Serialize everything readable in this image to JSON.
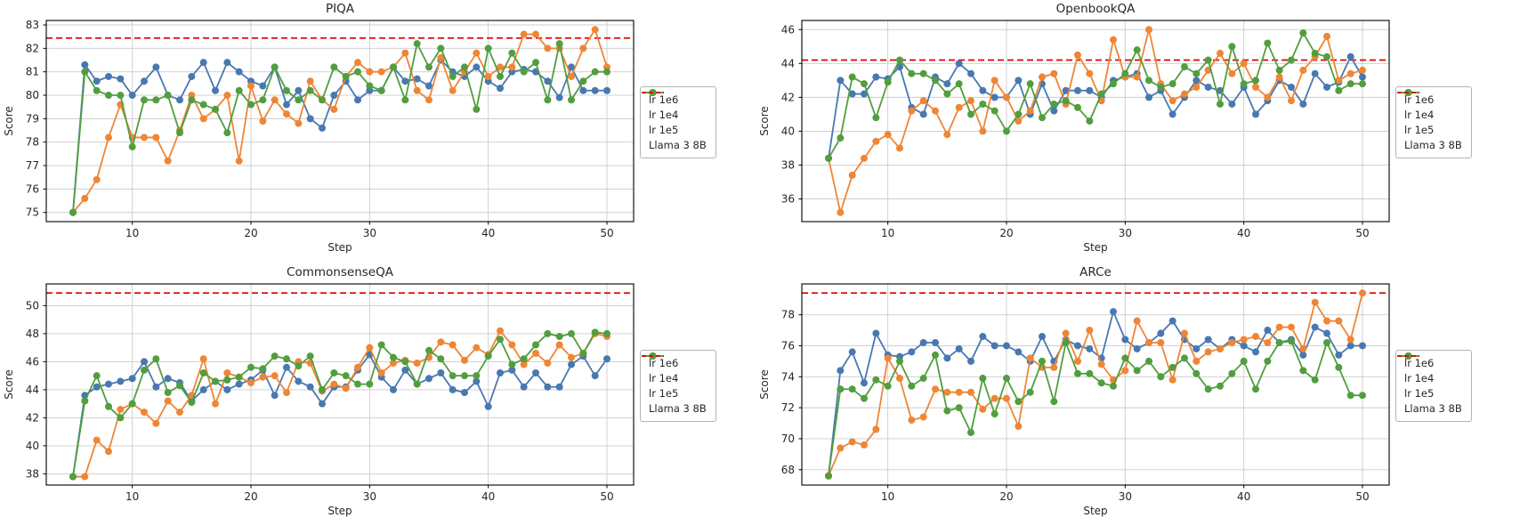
{
  "figure": {
    "background": "#ffffff",
    "x_axis_label": "Step",
    "y_axis_label": "Score",
    "x_tick_labels": [
      10,
      20,
      30,
      40,
      50
    ],
    "legend": {
      "entries": [
        "lr 1e6",
        "lr 1e4",
        "lr 1e5",
        "Llama 3 8B"
      ],
      "position": "right of each subplot"
    }
  },
  "colors": {
    "lr_1e6": "#4878b0",
    "lr_1e4": "#ee8636",
    "lr_1e5": "#519e3e",
    "baseline": "#e50000",
    "grid": "#cccccc",
    "spine": "#000000",
    "text": "#262626"
  },
  "chart_data": [
    {
      "type": "line",
      "title": "PIQA",
      "xlabel": "Step",
      "ylabel": "Score",
      "x_range": [
        5,
        50
      ],
      "x_step": 1,
      "xlim": [
        2.75,
        52.25
      ],
      "ylim": [
        74.61,
        83.19
      ],
      "xticks": [
        10,
        20,
        30,
        40,
        50
      ],
      "yticks": [
        75,
        76,
        77,
        78,
        79,
        80,
        81,
        82,
        83
      ],
      "grid": true,
      "baseline": {
        "label": "Llama 3 8B",
        "value": 82.44
      },
      "series": [
        {
          "name": "lr 1e6",
          "color_key": "lr_1e6",
          "values": [
            75.0,
            81.3,
            80.6,
            80.8,
            80.7,
            80.0,
            80.6,
            81.2,
            80.0,
            79.8,
            80.8,
            81.4,
            80.2,
            81.4,
            81.0,
            80.6,
            80.4,
            81.2,
            79.6,
            80.2,
            79.0,
            78.6,
            80.0,
            80.6,
            79.8,
            80.2,
            80.2,
            81.2,
            80.6,
            80.7,
            80.4,
            81.5,
            81.0,
            80.8,
            81.2,
            80.6,
            80.3,
            81.0,
            81.1,
            81.0,
            80.6,
            79.9,
            81.2,
            80.2,
            80.2,
            80.2
          ]
        },
        {
          "name": "lr 1e4",
          "color_key": "lr_1e4",
          "values": [
            75.0,
            75.6,
            76.4,
            78.2,
            79.6,
            78.2,
            78.2,
            78.2,
            77.2,
            78.5,
            80.0,
            79.0,
            79.4,
            80.0,
            77.2,
            80.4,
            78.9,
            79.8,
            79.2,
            78.8,
            80.6,
            79.8,
            79.4,
            80.8,
            81.4,
            81.0,
            81.0,
            81.2,
            81.8,
            80.2,
            79.8,
            81.6,
            80.2,
            81.0,
            81.8,
            80.8,
            81.2,
            81.2,
            82.6,
            82.6,
            82.0,
            82.0,
            80.8,
            82.0,
            82.8,
            81.2
          ]
        },
        {
          "name": "lr 1e5",
          "color_key": "lr_1e5",
          "values": [
            75.0,
            81.0,
            80.2,
            80.0,
            80.0,
            77.8,
            79.8,
            79.8,
            80.0,
            78.4,
            79.8,
            79.6,
            79.4,
            78.4,
            80.2,
            79.6,
            79.8,
            81.2,
            80.2,
            79.8,
            80.2,
            79.8,
            81.2,
            80.8,
            81.0,
            80.4,
            80.2,
            81.2,
            79.8,
            82.2,
            81.2,
            82.0,
            80.8,
            81.2,
            79.4,
            82.0,
            80.8,
            81.8,
            81.0,
            81.4,
            79.8,
            82.2,
            79.8,
            80.6,
            81.0,
            81.0
          ]
        }
      ]
    },
    {
      "type": "line",
      "title": "OpenbookQA",
      "xlabel": "Step",
      "ylabel": "Score",
      "x_range": [
        5,
        50
      ],
      "x_step": 1,
      "xlim": [
        2.75,
        52.25
      ],
      "ylim": [
        34.66,
        46.54
      ],
      "xticks": [
        10,
        20,
        30,
        40,
        50
      ],
      "yticks": [
        36,
        38,
        40,
        42,
        44,
        46
      ],
      "grid": true,
      "baseline": {
        "label": "Llama 3 8B",
        "value": 44.2
      },
      "series": [
        {
          "name": "lr 1e6",
          "color_key": "lr_1e6",
          "values": [
            38.4,
            43.0,
            42.2,
            42.2,
            43.2,
            43.1,
            43.8,
            41.4,
            41.0,
            43.2,
            42.8,
            44.0,
            43.4,
            42.4,
            42.0,
            42.0,
            43.0,
            41.0,
            42.8,
            41.2,
            42.4,
            42.4,
            42.4,
            42.0,
            43.0,
            43.2,
            43.4,
            42.0,
            42.4,
            41.0,
            42.0,
            43.0,
            42.6,
            42.4,
            41.6,
            42.6,
            41.0,
            41.8,
            43.0,
            42.6,
            41.6,
            43.4,
            42.6,
            42.9,
            44.4,
            43.2
          ]
        },
        {
          "name": "lr 1e4",
          "color_key": "lr_1e4",
          "values": [
            38.4,
            35.2,
            37.4,
            38.4,
            39.4,
            39.8,
            39.0,
            41.2,
            41.8,
            41.2,
            39.8,
            41.4,
            41.8,
            40.0,
            43.0,
            42.0,
            40.6,
            41.2,
            43.2,
            43.4,
            41.6,
            44.5,
            43.4,
            41.8,
            45.4,
            43.2,
            43.2,
            46.0,
            42.8,
            41.8,
            42.2,
            42.6,
            43.6,
            44.6,
            43.4,
            44.0,
            42.6,
            42.0,
            43.2,
            41.8,
            43.6,
            44.4,
            45.6,
            43.0,
            43.4,
            43.6
          ]
        },
        {
          "name": "lr 1e5",
          "color_key": "lr_1e5",
          "values": [
            38.4,
            39.6,
            43.2,
            42.8,
            40.8,
            42.9,
            44.2,
            43.4,
            43.4,
            43.0,
            42.2,
            42.8,
            41.0,
            41.6,
            41.2,
            40.0,
            41.0,
            42.8,
            40.8,
            41.6,
            41.8,
            41.4,
            40.6,
            42.2,
            42.8,
            43.4,
            44.8,
            43.0,
            42.6,
            42.8,
            43.8,
            43.4,
            44.2,
            41.6,
            45.0,
            42.8,
            43.0,
            45.2,
            43.6,
            44.2,
            45.8,
            44.6,
            44.4,
            42.4,
            42.8,
            42.8
          ]
        }
      ]
    },
    {
      "type": "line",
      "title": "CommonsenseQA",
      "xlabel": "Step",
      "ylabel": "Score",
      "x_range": [
        5,
        50
      ],
      "x_step": 1,
      "xlim": [
        2.75,
        52.25
      ],
      "ylim": [
        37.2,
        51.55
      ],
      "xticks": [
        10,
        20,
        30,
        40,
        50
      ],
      "yticks": [
        38,
        40,
        42,
        44,
        46,
        48,
        50
      ],
      "grid": true,
      "baseline": {
        "label": "Llama 3 8B",
        "value": 50.9
      },
      "series": [
        {
          "name": "lr 1e6",
          "color_key": "lr_1e6",
          "values": [
            37.8,
            43.6,
            44.2,
            44.4,
            44.6,
            44.8,
            46.0,
            44.2,
            44.8,
            44.5,
            43.2,
            44.0,
            44.6,
            44.0,
            44.4,
            44.7,
            45.4,
            43.6,
            45.6,
            44.6,
            44.2,
            43.0,
            44.2,
            44.2,
            45.4,
            46.5,
            44.9,
            44.0,
            45.4,
            44.4,
            44.8,
            45.2,
            44.0,
            43.8,
            44.6,
            42.8,
            45.2,
            45.4,
            44.2,
            45.2,
            44.2,
            44.2,
            45.8,
            46.4,
            45.0,
            46.2
          ]
        },
        {
          "name": "lr 1e4",
          "color_key": "lr_1e4",
          "values": [
            37.8,
            37.8,
            40.4,
            39.6,
            42.6,
            43.0,
            42.4,
            41.6,
            43.2,
            42.4,
            43.6,
            46.2,
            43.0,
            45.2,
            44.9,
            44.5,
            44.9,
            45.0,
            43.8,
            46.0,
            45.9,
            43.9,
            44.4,
            44.1,
            45.6,
            47.0,
            45.2,
            45.9,
            46.1,
            45.9,
            46.3,
            47.4,
            47.2,
            46.1,
            47.0,
            46.5,
            48.2,
            47.2,
            45.8,
            46.6,
            45.9,
            47.2,
            46.3,
            46.6,
            48.0,
            47.8
          ]
        },
        {
          "name": "lr 1e5",
          "color_key": "lr_1e5",
          "values": [
            37.8,
            43.2,
            45.0,
            42.8,
            42.0,
            43.0,
            45.4,
            46.2,
            43.8,
            44.3,
            43.1,
            45.2,
            44.6,
            44.7,
            44.9,
            45.6,
            45.5,
            46.4,
            46.2,
            45.7,
            46.4,
            44.0,
            45.2,
            45.0,
            44.4,
            44.4,
            47.2,
            46.3,
            46.0,
            44.4,
            46.8,
            46.2,
            45.0,
            45.0,
            45.0,
            46.4,
            47.6,
            45.8,
            46.2,
            47.2,
            48.0,
            47.8,
            48.0,
            46.6,
            48.1,
            48.0
          ]
        }
      ]
    },
    {
      "type": "line",
      "title": "ARCe",
      "xlabel": "Step",
      "ylabel": "Score",
      "x_range": [
        5,
        50
      ],
      "x_step": 1,
      "xlim": [
        2.75,
        52.25
      ],
      "ylim": [
        67.01,
        79.99
      ],
      "xticks": [
        10,
        20,
        30,
        40,
        50
      ],
      "yticks": [
        68,
        70,
        72,
        74,
        76,
        78
      ],
      "grid": true,
      "baseline": {
        "label": "Llama 3 8B",
        "value": 79.4
      },
      "series": [
        {
          "name": "lr 1e6",
          "color_key": "lr_1e6",
          "values": [
            67.6,
            74.4,
            75.6,
            73.6,
            76.8,
            75.4,
            75.3,
            75.6,
            76.2,
            76.2,
            75.2,
            75.8,
            75.0,
            76.6,
            76.0,
            76.0,
            75.6,
            75.0,
            76.6,
            75.0,
            76.4,
            76.0,
            75.8,
            75.2,
            78.2,
            76.4,
            75.8,
            76.2,
            76.8,
            77.6,
            76.4,
            75.8,
            76.4,
            75.8,
            76.4,
            76.0,
            75.6,
            77.0,
            76.2,
            76.4,
            75.4,
            77.2,
            76.8,
            75.4,
            76.0,
            76.0
          ]
        },
        {
          "name": "lr 1e4",
          "color_key": "lr_1e4",
          "values": [
            67.6,
            69.4,
            69.8,
            69.6,
            70.6,
            75.2,
            73.9,
            71.2,
            71.4,
            73.2,
            73.0,
            73.0,
            73.0,
            71.9,
            72.6,
            72.6,
            70.8,
            75.2,
            74.6,
            74.6,
            76.8,
            75.0,
            77.0,
            74.8,
            73.8,
            74.4,
            77.6,
            76.2,
            76.2,
            73.8,
            76.8,
            75.0,
            75.6,
            75.8,
            76.2,
            76.4,
            76.6,
            76.2,
            77.2,
            77.2,
            75.8,
            78.8,
            77.6,
            77.6,
            76.4,
            79.4
          ]
        },
        {
          "name": "lr 1e5",
          "color_key": "lr_1e5",
          "values": [
            67.6,
            73.2,
            73.2,
            72.6,
            73.8,
            73.4,
            75.0,
            73.4,
            73.9,
            75.4,
            71.8,
            72.0,
            70.4,
            73.9,
            71.6,
            73.9,
            72.4,
            73.0,
            75.0,
            72.4,
            76.2,
            74.2,
            74.2,
            73.6,
            73.4,
            75.2,
            74.4,
            75.0,
            74.0,
            74.6,
            75.2,
            74.2,
            73.2,
            73.4,
            74.2,
            75.0,
            73.2,
            75.0,
            76.2,
            76.3,
            74.4,
            73.8,
            76.2,
            74.6,
            72.8,
            72.8
          ]
        }
      ]
    }
  ]
}
